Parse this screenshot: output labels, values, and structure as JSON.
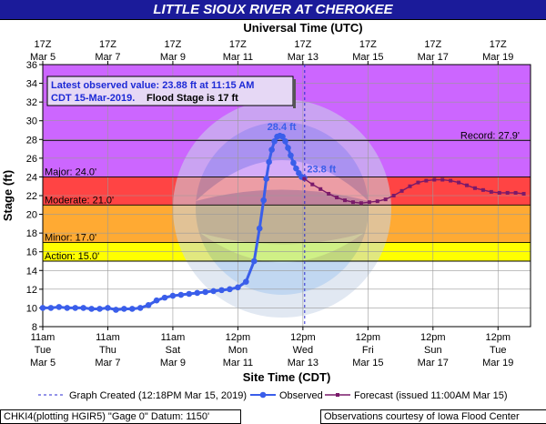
{
  "header": {
    "title": "LITTLE SIOUX RIVER AT CHEROKEE"
  },
  "chart_data": {
    "type": "line",
    "title": "LITTLE SIOUX RIVER AT CHEROKEE",
    "top_axis_title": "Universal Time (UTC)",
    "xlabel": "Site Time (CDT)",
    "ylabel": "Stage (ft)",
    "ylim": [
      8,
      36
    ],
    "xlim_hours_from_mar5_11am": [
      0,
      360
    ],
    "yticks": [
      8,
      10,
      12,
      14,
      16,
      18,
      20,
      22,
      24,
      26,
      28,
      30,
      32,
      34,
      36
    ],
    "grid": true,
    "bottom_ticks": [
      {
        "l1": "11am",
        "l2": "Tue",
        "l3": "Mar 5"
      },
      {
        "l1": "11am",
        "l2": "Thu",
        "l3": "Mar 7"
      },
      {
        "l1": "11am",
        "l2": "Sat",
        "l3": "Mar 9"
      },
      {
        "l1": "12pm",
        "l2": "Mon",
        "l3": "Mar 11"
      },
      {
        "l1": "12pm",
        "l2": "Wed",
        "l3": "Mar 13"
      },
      {
        "l1": "12pm",
        "l2": "Fri",
        "l3": "Mar 15"
      },
      {
        "l1": "12pm",
        "l2": "Sun",
        "l3": "Mar 17"
      },
      {
        "l1": "12pm",
        "l2": "Tue",
        "l3": "Mar 19"
      }
    ],
    "top_ticks": [
      {
        "l1": "17Z",
        "l2": "Mar  5"
      },
      {
        "l1": "17Z",
        "l2": "Mar  7"
      },
      {
        "l1": "17Z",
        "l2": "Mar  9"
      },
      {
        "l1": "17Z",
        "l2": "Mar 11"
      },
      {
        "l1": "17Z",
        "l2": "Mar 13"
      },
      {
        "l1": "17Z",
        "l2": "Mar 15"
      },
      {
        "l1": "17Z",
        "l2": "Mar 17"
      },
      {
        "l1": "17Z",
        "l2": "Mar 19"
      }
    ],
    "bands": [
      {
        "name": "Action",
        "from": 15,
        "to": 17,
        "color": "#ffff00"
      },
      {
        "name": "Minor",
        "from": 17,
        "to": 21,
        "color": "#ffaa33"
      },
      {
        "name": "Moderate",
        "from": 21,
        "to": 24,
        "color": "#ff4444"
      },
      {
        "name": "Major",
        "from": 24,
        "to": 36,
        "color": "#cc66ff"
      }
    ],
    "thresholds": [
      {
        "label": "Action: 15.0'",
        "value": 15.0
      },
      {
        "label": "Minor: 17.0'",
        "value": 17.0
      },
      {
        "label": "Moderate: 21.0'",
        "value": 21.0
      },
      {
        "label": "Major: 24.0'",
        "value": 24.0
      },
      {
        "label": "Record: 27.9'",
        "value": 27.9
      }
    ],
    "graph_created_hour": 193.3,
    "series": [
      {
        "name": "Observed",
        "color": "#3a5eea",
        "x": [
          0,
          6,
          12,
          18,
          24,
          30,
          36,
          42,
          48,
          54,
          60,
          66,
          72,
          78,
          84,
          90,
          96,
          102,
          108,
          114,
          120,
          126,
          132,
          138,
          144,
          150,
          156,
          160,
          163,
          165,
          167,
          169,
          171,
          173,
          175,
          177,
          179,
          181,
          183,
          185,
          187,
          189,
          191,
          193
        ],
        "y": [
          10.0,
          10.0,
          10.1,
          10.0,
          10.0,
          10.0,
          9.9,
          9.9,
          10.0,
          9.8,
          9.9,
          9.9,
          10.0,
          10.3,
          10.8,
          11.1,
          11.3,
          11.4,
          11.5,
          11.6,
          11.7,
          11.8,
          11.9,
          12.0,
          12.2,
          12.8,
          15.0,
          18.5,
          21.5,
          23.8,
          25.6,
          26.9,
          27.8,
          28.3,
          28.4,
          28.3,
          27.8,
          27.1,
          26.3,
          25.5,
          24.9,
          24.4,
          24.0,
          23.88
        ]
      },
      {
        "name": "Forecast (issued 11:00AM Mar 15)",
        "color": "#7a1a6a",
        "x": [
          193,
          199,
          205,
          211,
          217,
          223,
          229,
          235,
          241,
          247,
          253,
          259,
          265,
          271,
          277,
          283,
          289,
          295,
          301,
          307,
          313,
          319,
          325,
          331,
          337,
          343,
          349,
          355
        ],
        "y": [
          23.8,
          23.2,
          22.7,
          22.2,
          21.8,
          21.5,
          21.3,
          21.2,
          21.3,
          21.4,
          21.6,
          22.0,
          22.5,
          23.0,
          23.4,
          23.6,
          23.7,
          23.7,
          23.6,
          23.4,
          23.1,
          22.8,
          22.6,
          22.4,
          22.3,
          22.3,
          22.3,
          22.2
        ]
      }
    ],
    "annotations": {
      "peak_label": "28.4 ft",
      "current_label": "23.8 ft"
    },
    "info_box": {
      "line1": "Latest observed value: 23.88 ft at 11:15 AM",
      "line2a": "CDT 15-Mar-2019.",
      "line2b": "Flood Stage is 17 ft"
    },
    "legend": {
      "graph_created": "Graph Created (12:18PM Mar 15, 2019)",
      "observed": "Observed",
      "forecast": "Forecast (issued 11:00AM Mar 15)"
    }
  },
  "footer": {
    "left": "CHKI4(plotting HGIR5) \"Gage 0\" Datum: 1150'",
    "right": "Observations courtesy of Iowa Flood Center"
  },
  "colors": {
    "title_bar": "#1b1b9a",
    "observed": "#3a5eea",
    "forecast": "#7a1a6a",
    "action": "#ffff00",
    "minor": "#ffaa33",
    "moderate": "#ff4444",
    "major": "#cc66ff"
  }
}
